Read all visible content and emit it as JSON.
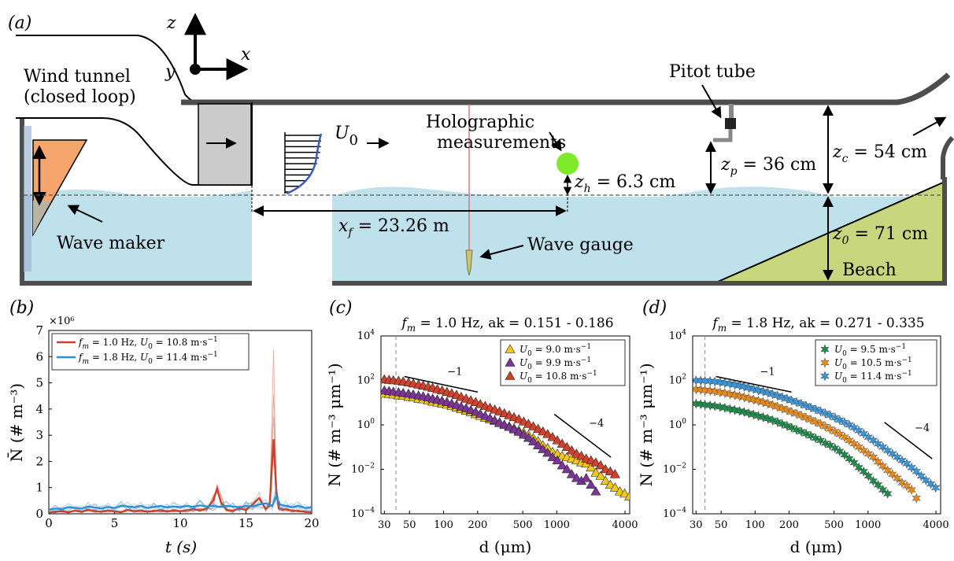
{
  "panels": {
    "a": {
      "panel_label": "(a)",
      "axes": {
        "z": "z",
        "y": "y",
        "x": "x"
      },
      "labels": {
        "wind_tunnel_1": "Wind tunnel",
        "wind_tunnel_2": "(closed loop)",
        "pitot": "Pitot tube",
        "holo_1": "Holographic",
        "holo_2": "measurements",
        "u0": "U",
        "u0_sub": "0",
        "zh": "z_h = 6.3 cm",
        "zp": "z_p = 36 cm",
        "zc": "z_c = 54 cm",
        "z0": "z_0 = 71 cm",
        "xf": "x_f = 23.26 m",
        "wave_maker": "Wave maker",
        "wave_gauge": "Wave gauge",
        "beach": "Beach"
      },
      "colors": {
        "water": "#bee1ec",
        "beach": "#c8d67e",
        "wavemaker": "#f6a66c",
        "sphere": "#7eea2a",
        "wall": "#4d4d4d",
        "screen": "#cbcbcb"
      }
    },
    "b": {
      "panel_label": "(b)",
      "ylabel": "N̄ (# m⁻³)",
      "xlabel": "t (s)",
      "exponent": "×10⁶"
    },
    "c": {
      "panel_label": "(c)",
      "title": "f_m = 1.0 Hz, ak = 0.151 - 0.186",
      "ylabel": "N (# m⁻³ μm⁻¹)",
      "xlabel": "d (μm)",
      "slope1": "−1",
      "slope2": "−4"
    },
    "d": {
      "panel_label": "(d)",
      "title": "f_m = 1.8 Hz, ak = 0.271 - 0.335",
      "ylabel": "N (# m⁻³ μm⁻¹)",
      "xlabel": "d (μm)",
      "slope1": "−1",
      "slope2": "−4"
    }
  },
  "chart_data": [
    {
      "panel": "b",
      "type": "line",
      "xlim": [
        0,
        20
      ],
      "ylim": [
        0,
        7
      ],
      "xticks": [
        0,
        5,
        10,
        15,
        20
      ],
      "yticks": [
        0,
        1,
        2,
        3,
        4,
        5,
        6,
        7
      ],
      "legend_position": "top-left",
      "series": [
        {
          "name": "f_m = 1.0 Hz, U_0 = 10.8 m·s⁻¹",
          "legend_parts": [
            "f",
            "m",
            " = 1.0 Hz, ",
            "U",
            "0",
            " = 10.8 m·s",
            "−1"
          ],
          "color": "#c8402a",
          "x": [
            0,
            0.5,
            1,
            1.5,
            2,
            2.5,
            3,
            3.5,
            4,
            4.5,
            5,
            5.5,
            6,
            6.5,
            7,
            7.5,
            8,
            8.5,
            9,
            9.5,
            10,
            10.5,
            11,
            11.5,
            12,
            12.5,
            12.8,
            13.1,
            13.5,
            14,
            14.5,
            15,
            15.5,
            16,
            16.5,
            16.8,
            17.1,
            17.3,
            17.5,
            17.8,
            18,
            18.5,
            19,
            19.5,
            20
          ],
          "y": [
            0.05,
            0.08,
            0.1,
            0.06,
            0.12,
            0.08,
            0.15,
            0.1,
            0.08,
            0.12,
            0.1,
            0.06,
            0.15,
            0.1,
            0.12,
            0.08,
            0.1,
            0.14,
            0.09,
            0.12,
            0.1,
            0.13,
            0.18,
            0.12,
            0.2,
            0.5,
            0.95,
            0.45,
            0.15,
            0.12,
            0.2,
            0.15,
            0.35,
            0.6,
            0.18,
            0.3,
            2.85,
            0.9,
            0.2,
            0.15,
            0.18,
            0.12,
            0.1,
            0.08,
            0.06
          ]
        },
        {
          "name": "f_m = 1.8 Hz, U_0 = 11.4 m·s⁻¹",
          "legend_parts": [
            "f",
            "m",
            " = 1.8 Hz, ",
            "U",
            "0",
            " = 11.4 m·s",
            "−1"
          ],
          "color": "#2e8fd4",
          "x": [
            0,
            0.5,
            1,
            1.5,
            2,
            2.5,
            3,
            3.5,
            4,
            4.5,
            5,
            5.5,
            6,
            6.5,
            7,
            7.5,
            8,
            8.5,
            9,
            9.5,
            10,
            10.5,
            11,
            11.5,
            12,
            12.5,
            13,
            13.5,
            14,
            14.5,
            15,
            15.5,
            16,
            16.5,
            17,
            17.3,
            17.6,
            18,
            18.5,
            19,
            19.5,
            20
          ],
          "y": [
            0.15,
            0.2,
            0.18,
            0.25,
            0.22,
            0.2,
            0.28,
            0.24,
            0.2,
            0.26,
            0.22,
            0.3,
            0.28,
            0.25,
            0.3,
            0.22,
            0.26,
            0.3,
            0.24,
            0.28,
            0.25,
            0.3,
            0.26,
            0.32,
            0.28,
            0.3,
            0.26,
            0.3,
            0.28,
            0.25,
            0.3,
            0.28,
            0.35,
            0.4,
            0.3,
            0.65,
            0.35,
            0.3,
            0.25,
            0.3,
            0.22,
            0.25
          ]
        }
      ]
    },
    {
      "panel": "c",
      "type": "scatter",
      "xscale": "log",
      "yscale": "log",
      "xlim": [
        28,
        4400
      ],
      "ylim": [
        0.0001,
        10000
      ],
      "xticks": [
        30,
        50,
        100,
        200,
        500,
        1000,
        4000
      ],
      "yticks_exp": [
        -4,
        -2,
        0,
        2,
        4
      ],
      "vline_x": 38,
      "legend_position": "top-right",
      "slope_lines": [
        {
          "label": "−1",
          "x": [
            45,
            200
          ],
          "y": [
            150,
            30
          ]
        },
        {
          "label": "−4",
          "x": [
            950,
            3000
          ],
          "y": [
            3,
            0.035
          ]
        }
      ],
      "series": [
        {
          "name": "U_0 = 9.0 m·s⁻¹",
          "legend_parts": [
            "U",
            "0",
            " = 9.0 m·s",
            "−1"
          ],
          "marker": "triangle",
          "color": "#f2c81c",
          "x": [
            30,
            33,
            36,
            40,
            44,
            49,
            54,
            60,
            66,
            73,
            80,
            88,
            97,
            107,
            118,
            130,
            143,
            158,
            174,
            192,
            211,
            233,
            257,
            283,
            312,
            344,
            380,
            419,
            462,
            510,
            562,
            620,
            683,
            753,
            830,
            916,
            1010,
            1114,
            1228,
            1354,
            1493,
            1647,
            1816,
            2002,
            2208,
            2435,
            2686,
            2962,
            3266,
            3602,
            3972,
            4380
          ],
          "y": [
            25,
            24,
            23,
            21,
            20,
            18,
            17,
            15,
            14,
            12.5,
            11,
            10,
            9,
            8,
            7,
            6,
            5,
            4.3,
            3.7,
            3,
            2.5,
            2.1,
            1.8,
            1.5,
            1.2,
            1,
            0.85,
            0.7,
            0.55,
            0.45,
            0.35,
            0.25,
            0.18,
            0.12,
            0.09,
            0.06,
            0.05,
            0.04,
            0.035,
            0.03,
            0.025,
            0.02,
            0.018,
            0.012,
            0.007,
            0.005,
            0.003,
            0.002,
            0.0015,
            0.001,
            0.0008,
            0.0006
          ]
        },
        {
          "name": "U_0 = 9.9 m·s⁻¹",
          "legend_parts": [
            "U",
            "0",
            " = 9.9 m·s",
            "−1"
          ],
          "marker": "triangle",
          "color": "#7a3596",
          "x": [
            30,
            33,
            36,
            40,
            44,
            49,
            54,
            60,
            66,
            73,
            80,
            88,
            97,
            107,
            118,
            130,
            143,
            158,
            174,
            192,
            211,
            233,
            257,
            283,
            312,
            344,
            380,
            419,
            462,
            510,
            562,
            620,
            683,
            753,
            830,
            916,
            1010,
            1114,
            1228,
            1354,
            1493,
            1647,
            1816,
            2002,
            2208
          ],
          "y": [
            35,
            33,
            31,
            29,
            27,
            25,
            23,
            21,
            19,
            17,
            15,
            13.5,
            12,
            10.5,
            9,
            7.8,
            6.5,
            5.5,
            4.6,
            3.8,
            3.1,
            2.5,
            2,
            1.6,
            1.3,
            1,
            0.8,
            0.62,
            0.48,
            0.36,
            0.26,
            0.18,
            0.12,
            0.08,
            0.055,
            0.035,
            0.025,
            0.015,
            0.01,
            0.006,
            0.004,
            0.003,
            0.004,
            0.002,
            0.001
          ]
        },
        {
          "name": "U_0 = 10.8 m·s⁻¹",
          "legend_parts": [
            "U",
            "0",
            " = 10.8 m·s",
            "−1"
          ],
          "marker": "triangle",
          "color": "#d1412c",
          "x": [
            30,
            33,
            36,
            40,
            44,
            49,
            54,
            60,
            66,
            73,
            80,
            88,
            97,
            107,
            118,
            130,
            143,
            158,
            174,
            192,
            211,
            233,
            257,
            283,
            312,
            344,
            380,
            419,
            462,
            510,
            562,
            620,
            683,
            753,
            830,
            916,
            1010,
            1114,
            1228,
            1354,
            1493,
            1647,
            1816,
            2002,
            2208,
            2435,
            2686,
            2962,
            3266
          ],
          "y": [
            110,
            105,
            100,
            95,
            88,
            80,
            72,
            65,
            58,
            52,
            46,
            40,
            35,
            30,
            26,
            22,
            18,
            15,
            12.5,
            10.5,
            8.5,
            7,
            5.8,
            4.8,
            4,
            3.3,
            2.7,
            2.2,
            1.8,
            1.4,
            1.1,
            0.85,
            0.65,
            0.5,
            0.38,
            0.28,
            0.2,
            0.14,
            0.1,
            0.07,
            0.05,
            0.04,
            0.03,
            0.025,
            0.02,
            0.015,
            0.01,
            0.008,
            0.006
          ]
        }
      ]
    },
    {
      "panel": "d",
      "type": "scatter",
      "xscale": "log",
      "yscale": "log",
      "xlim": [
        28,
        4400
      ],
      "ylim": [
        0.0001,
        10000
      ],
      "xticks": [
        30,
        50,
        100,
        200,
        500,
        1000,
        4000
      ],
      "yticks_exp": [
        -4,
        -2,
        0,
        2,
        4
      ],
      "vline_x": 36,
      "legend_position": "top-right",
      "slope_lines": [
        {
          "label": "−1",
          "x": [
            45,
            210
          ],
          "y": [
            150,
            30
          ]
        },
        {
          "label": "−4",
          "x": [
            1400,
            3700
          ],
          "y": [
            1.3,
            0.03
          ]
        }
      ],
      "series": [
        {
          "name": "U_0 = 9.5 m·s⁻¹",
          "legend_parts": [
            "U",
            "0",
            " = 9.5 m·s",
            "−1"
          ],
          "marker": "star",
          "color": "#1f8a4c",
          "x": [
            30,
            33,
            36,
            40,
            44,
            49,
            54,
            60,
            66,
            73,
            80,
            88,
            97,
            107,
            118,
            130,
            143,
            158,
            174,
            192,
            211,
            233,
            257,
            283,
            312,
            344,
            380,
            419,
            462,
            510,
            562,
            620,
            683,
            753,
            830,
            916,
            1010,
            1114,
            1228,
            1354,
            1493
          ],
          "y": [
            9,
            8.5,
            8,
            7.5,
            7,
            6.4,
            5.8,
            5.2,
            4.7,
            4.2,
            3.8,
            3.3,
            2.9,
            2.5,
            2.2,
            1.9,
            1.6,
            1.35,
            1.1,
            0.9,
            0.75,
            0.6,
            0.5,
            0.4,
            0.32,
            0.25,
            0.2,
            0.15,
            0.12,
            0.09,
            0.065,
            0.045,
            0.03,
            0.02,
            0.012,
            0.008,
            0.005,
            0.003,
            0.002,
            0.0012,
            0.0008
          ]
        },
        {
          "name": "U_0 = 10.5 m·s⁻¹",
          "legend_parts": [
            "U",
            "0",
            " = 10.5 m·s",
            "−1"
          ],
          "marker": "star",
          "color": "#e88a1a",
          "x": [
            30,
            33,
            36,
            40,
            44,
            49,
            54,
            60,
            66,
            73,
            80,
            88,
            97,
            107,
            118,
            130,
            143,
            158,
            174,
            192,
            211,
            233,
            257,
            283,
            312,
            344,
            380,
            419,
            462,
            510,
            562,
            620,
            683,
            753,
            830,
            916,
            1010,
            1114,
            1228,
            1354,
            1493,
            1647,
            1816,
            2002,
            2208,
            2435,
            2686
          ],
          "y": [
            40,
            38,
            36,
            34,
            32,
            29,
            27,
            24,
            22,
            19.5,
            17.5,
            15.5,
            13.5,
            12,
            10.5,
            9,
            7.8,
            6.6,
            5.5,
            4.6,
            3.8,
            3.2,
            2.6,
            2.1,
            1.7,
            1.35,
            1.1,
            0.85,
            0.65,
            0.5,
            0.38,
            0.28,
            0.2,
            0.14,
            0.1,
            0.07,
            0.05,
            0.035,
            0.022,
            0.014,
            0.009,
            0.006,
            0.004,
            0.0025,
            0.0018,
            0.0012,
            0.0005
          ]
        },
        {
          "name": "U_0 = 11.4 m·s⁻¹",
          "legend_parts": [
            "U",
            "0",
            " = 11.4 m·s",
            "−1"
          ],
          "marker": "star",
          "color": "#3b95d6",
          "x": [
            30,
            33,
            36,
            40,
            44,
            49,
            54,
            60,
            66,
            73,
            80,
            88,
            97,
            107,
            118,
            130,
            143,
            158,
            174,
            192,
            211,
            233,
            257,
            283,
            312,
            344,
            380,
            419,
            462,
            510,
            562,
            620,
            683,
            753,
            830,
            916,
            1010,
            1114,
            1228,
            1354,
            1493,
            1647,
            1816,
            2002,
            2208,
            2435,
            2686,
            2962,
            3266,
            3602,
            3972
          ],
          "y": [
            100,
            98,
            95,
            92,
            88,
            82,
            76,
            70,
            64,
            58,
            52,
            46,
            41,
            36,
            32,
            28,
            24,
            20.5,
            17.5,
            15,
            12.5,
            10.5,
            8.8,
            7.3,
            6,
            5,
            4.1,
            3.3,
            2.7,
            2.1,
            1.65,
            1.3,
            1,
            0.75,
            0.55,
            0.4,
            0.28,
            0.2,
            0.14,
            0.1,
            0.07,
            0.05,
            0.035,
            0.025,
            0.018,
            0.012,
            0.008,
            0.005,
            0.0032,
            0.0022,
            0.0015
          ]
        }
      ]
    }
  ]
}
